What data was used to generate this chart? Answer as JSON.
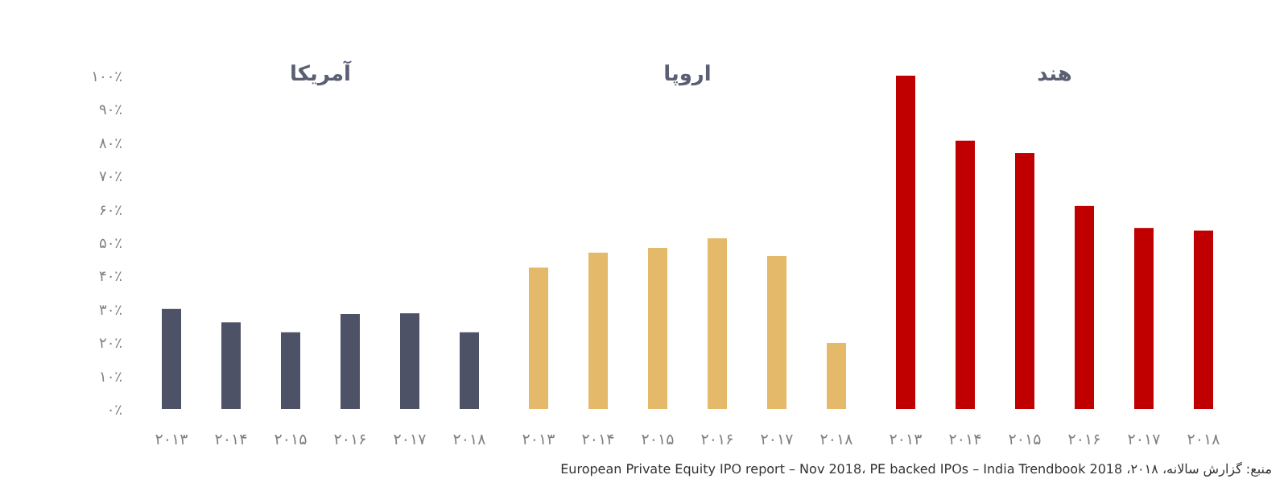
{
  "chart_data": [
    {
      "type": "bar",
      "title": "آمریکا",
      "categories": [
        "۲۰۱۳",
        "۲۰۱۴",
        "۲۰۱۵",
        "۲۰۱۶",
        "۲۰۱۷",
        "۲۰۱۸"
      ],
      "values": [
        30,
        26,
        23,
        28.5,
        28.7,
        23
      ],
      "color": "#4e5266",
      "ylim": [
        0,
        100
      ],
      "yticks": [
        {
          "value": 0,
          "label": "۰٪"
        },
        {
          "value": 10,
          "label": "۱۰٪"
        },
        {
          "value": 20,
          "label": "۲۰٪"
        },
        {
          "value": 30,
          "label": "۳۰٪"
        },
        {
          "value": 40,
          "label": "۴۰٪"
        },
        {
          "value": 50,
          "label": "۵۰٪"
        },
        {
          "value": 60,
          "label": "۶۰٪"
        },
        {
          "value": 70,
          "label": "۷۰٪"
        },
        {
          "value": 80,
          "label": "۸۰٪"
        },
        {
          "value": 90,
          "label": "۹۰٪"
        },
        {
          "value": 100,
          "label": "۱۰۰٪"
        }
      ]
    },
    {
      "type": "bar",
      "title": "اروپا",
      "categories": [
        "۲۰۱۳",
        "۲۰۱۴",
        "۲۰۱۵",
        "۲۰۱۶",
        "۲۰۱۷",
        "۲۰۱۸"
      ],
      "values": [
        42.4,
        46.9,
        48.3,
        51.2,
        45.9,
        19.8
      ],
      "color": "#e4b969",
      "ylim": [
        0,
        100
      ],
      "tick_labels": "x"
    },
    {
      "type": "bar",
      "title": "هند",
      "categories": [
        "۲۰۱۳",
        "۲۰۱۴",
        "۲۰۱۵",
        "۲۰۱۶",
        "۲۰۱۷",
        "۲۰۱۸"
      ],
      "values": [
        100,
        80.5,
        76.8,
        60.9,
        54.3,
        53.5
      ],
      "color": "#c00000",
      "ylim": [
        0,
        100
      ],
      "tick_labels": "x",
      "annotations": [
        "منبع: گزارش سالانه، ۲۰۱۸، European Private Equity IPO report – Nov 2018، PE backed IPOs – India Trendbook 2018"
      ]
    }
  ]
}
